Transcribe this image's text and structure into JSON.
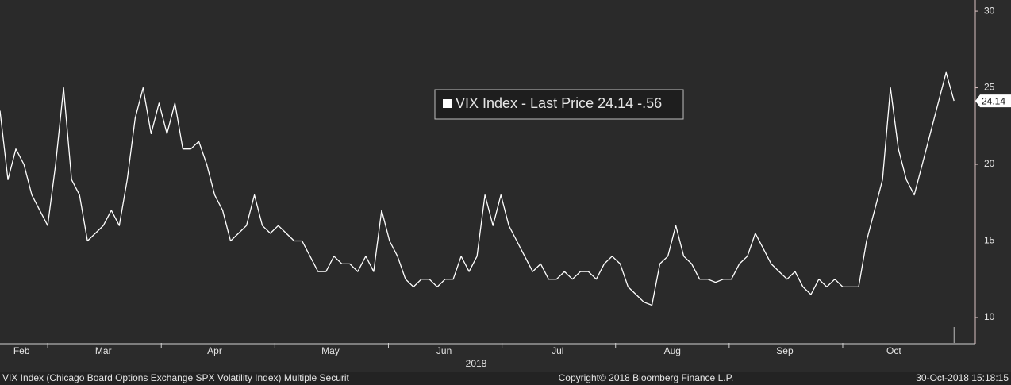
{
  "chart_data": {
    "type": "line",
    "legend": "VIX Index - Last Price 24.14  -.56",
    "last_value_label": "24.14",
    "x_label": "2018",
    "footer_left": "VIX Index (Chicago Board Options Exchange SPX Volatility Index) Multiple Securit",
    "footer_center": "Copyright© 2018 Bloomberg Finance L.P.",
    "footer_right": "30-Oct-2018 15:18:15",
    "x": [
      2.58,
      2.65,
      2.72,
      2.79,
      2.86,
      2.93,
      3.0,
      3.07,
      3.14,
      3.21,
      3.28,
      3.35,
      3.42,
      3.49,
      3.56,
      3.63,
      3.7,
      3.77,
      3.84,
      3.91,
      3.98,
      4.05,
      4.12,
      4.19,
      4.26,
      4.33,
      4.4,
      4.47,
      4.54,
      4.61,
      4.68,
      4.75,
      4.82,
      4.89,
      4.96,
      5.03,
      5.1,
      5.17,
      5.24,
      5.31,
      5.38,
      5.45,
      5.52,
      5.59,
      5.66,
      5.73,
      5.8,
      5.87,
      5.94,
      6.01,
      6.08,
      6.15,
      6.22,
      6.29,
      6.36,
      6.43,
      6.5,
      6.57,
      6.64,
      6.71,
      6.78,
      6.85,
      6.92,
      6.99,
      7.06,
      7.13,
      7.2,
      7.27,
      7.34,
      7.41,
      7.48,
      7.55,
      7.62,
      7.69,
      7.76,
      7.83,
      7.9,
      7.97,
      8.04,
      8.11,
      8.18,
      8.25,
      8.32,
      8.39,
      8.46,
      8.53,
      8.6,
      8.67,
      8.74,
      8.81,
      8.88,
      8.95,
      9.02,
      9.09,
      9.16,
      9.23,
      9.3,
      9.37,
      9.44,
      9.51,
      9.58,
      9.65,
      9.72,
      9.79,
      9.86,
      9.93,
      10.0,
      10.07,
      10.14,
      10.21,
      10.28,
      10.35,
      10.42,
      10.49,
      10.56,
      10.63,
      10.7,
      10.77,
      10.84,
      10.91,
      10.98
    ],
    "series": [
      {
        "name": "VIX Index - Last Price",
        "color": "#ffffff",
        "values": [
          23.5,
          19,
          21,
          20,
          18,
          17,
          16,
          20,
          25,
          19,
          18,
          15,
          15.5,
          16,
          17,
          16,
          19,
          23,
          25,
          22,
          24,
          22,
          24,
          21,
          21,
          21.5,
          20,
          18,
          17,
          15,
          15.5,
          16,
          18,
          16,
          15.5,
          16,
          15.5,
          15,
          15,
          14,
          13,
          13,
          14,
          13.5,
          13.5,
          13,
          14,
          13,
          17,
          15,
          14,
          12.5,
          12,
          12.5,
          12.5,
          12,
          12.5,
          12.5,
          14,
          13,
          14,
          18,
          16,
          18,
          16,
          15,
          14,
          13,
          13.5,
          12.5,
          12.5,
          13,
          12.5,
          13,
          13,
          12.5,
          13.5,
          14,
          13.5,
          12,
          11.5,
          11,
          10.8,
          13.5,
          14,
          16,
          14,
          13.5,
          12.5,
          12.5,
          12.3,
          12.5,
          12.5,
          13.5,
          14,
          15.5,
          14.5,
          13.5,
          13,
          12.5,
          13,
          12,
          11.5,
          12.5,
          12,
          12.5,
          12,
          12,
          12,
          15,
          17,
          19,
          25,
          21,
          19,
          18,
          20,
          22,
          24,
          26,
          24.14
        ]
      }
    ],
    "xlim": [
      2.58,
      11.16
    ],
    "xticks": [
      {
        "value": 2.77,
        "label": "Feb"
      },
      {
        "value": 3.49,
        "label": "Mar"
      },
      {
        "value": 4.47,
        "label": "Apr"
      },
      {
        "value": 5.49,
        "label": "May"
      },
      {
        "value": 6.49,
        "label": "Jun"
      },
      {
        "value": 7.49,
        "label": "Jul"
      },
      {
        "value": 8.5,
        "label": "Aug"
      },
      {
        "value": 9.49,
        "label": "Sep"
      },
      {
        "value": 10.45,
        "label": "Oct"
      }
    ],
    "ylim": [
      8.34,
      30.73
    ],
    "yticks": [
      10,
      15,
      20,
      25,
      30
    ]
  }
}
